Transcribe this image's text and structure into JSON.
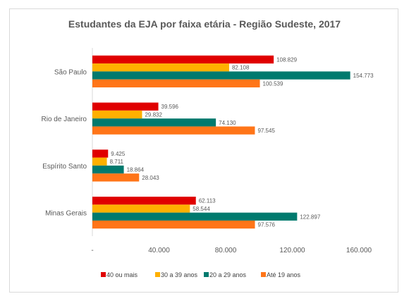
{
  "chart_data": {
    "type": "bar",
    "orientation": "horizontal",
    "title": "Estudantes da EJA por faixa etária - Região Sudeste, 2017",
    "xlabel": "",
    "ylabel": "",
    "categories": [
      "São Paulo",
      "Rio de Janeiro",
      "Espírito Santo",
      "Minas Gerais"
    ],
    "series": [
      {
        "name": "40 ou mais",
        "color": "#e00000",
        "values": [
          108829,
          39596,
          9425,
          62113
        ],
        "labels": [
          "108.829",
          "39.596",
          "9.425",
          "62.113"
        ]
      },
      {
        "name": "30 a 39 anos",
        "color": "#ffb000",
        "values": [
          82108,
          29832,
          8711,
          58544
        ],
        "labels": [
          "82.108",
          "29.832",
          "8.711",
          "58.544"
        ]
      },
      {
        "name": "20 a 29 anos",
        "color": "#007a6e",
        "values": [
          154773,
          74130,
          18864,
          122897
        ],
        "labels": [
          "154.773",
          "74.130",
          "18.864",
          "122.897"
        ]
      },
      {
        "name": "Até 19 anos",
        "color": "#ff7518",
        "values": [
          100539,
          97545,
          28043,
          97576
        ],
        "labels": [
          "100.539",
          "97.545",
          "28.043",
          "97.576"
        ]
      }
    ],
    "xlim": [
      0,
      160000
    ],
    "ticks": [
      0,
      40000,
      80000,
      120000,
      160000
    ],
    "tick_labels": [
      "-",
      "40.000",
      "80.000",
      "120.000",
      "160.000"
    ],
    "legend_position": "bottom",
    "grid": false
  }
}
